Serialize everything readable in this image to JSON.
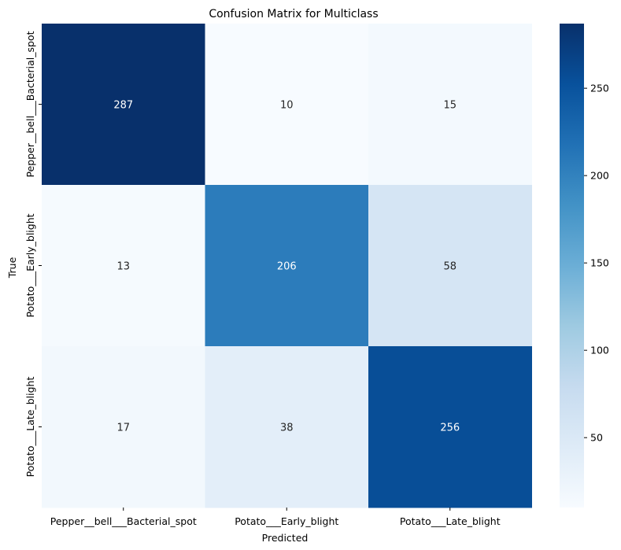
{
  "chart_data": {
    "type": "heatmap",
    "title": "Confusion Matrix for Multiclass",
    "xlabel": "Predicted",
    "ylabel": "True",
    "x_categories": [
      "Pepper__bell___Bacterial_spot",
      "Potato___Early_blight",
      "Potato___Late_blight"
    ],
    "y_categories": [
      "Pepper__bell___Bacterial_spot",
      "Potato___Early_blight",
      "Potato___Late_blight"
    ],
    "values": [
      [
        287,
        10,
        15
      ],
      [
        13,
        206,
        58
      ],
      [
        17,
        38,
        256
      ]
    ],
    "colormap": "Blues",
    "color_range": [
      10,
      287
    ],
    "colorbar_ticks": [
      50,
      100,
      150,
      200,
      250
    ],
    "annotations": true,
    "grid": false
  }
}
